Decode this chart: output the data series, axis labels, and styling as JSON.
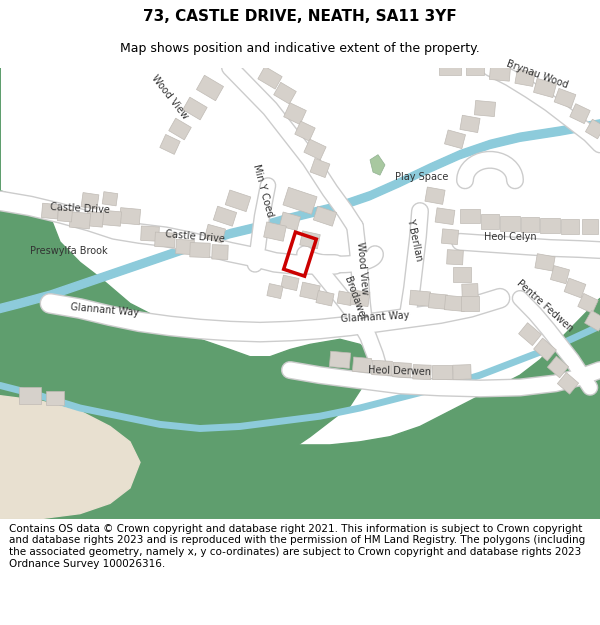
{
  "title_line1": "73, CASTLE DRIVE, NEATH, SA11 3YF",
  "title_line2": "Map shows position and indicative extent of the property.",
  "footer_text": "Contains OS data © Crown copyright and database right 2021. This information is subject to Crown copyright and database rights 2023 and is reproduced with the permission of HM Land Registry. The polygons (including the associated geometry, namely x, y co-ordinates) are subject to Crown copyright and database rights 2023 Ordnance Survey 100026316.",
  "fig_width": 6.0,
  "fig_height": 6.25,
  "map_bg_color": "#f5f3f0",
  "green_color": "#5f9e6e",
  "water_color": "#8dcbdb",
  "building_color": "#d6d1cb",
  "building_edge_color": "#c0bbb5",
  "property_outline_color": "#cc0000",
  "sand_color": "#e8e0d0",
  "title_fontsize": 11,
  "subtitle_fontsize": 9,
  "footer_fontsize": 7.5
}
